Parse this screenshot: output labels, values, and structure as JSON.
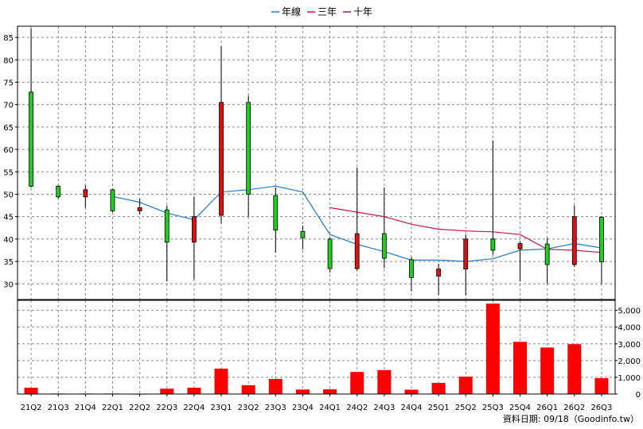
{
  "chart_data": {
    "type": "candlestick",
    "legend": [
      {
        "name": "年線",
        "color": "#1f78d1"
      },
      {
        "name": "三年",
        "color": "#d01050"
      },
      {
        "name": "十年",
        "color": "#a01060"
      }
    ],
    "legend_position": "top-center",
    "grid": true,
    "categories": [
      "21Q2",
      "21Q3",
      "21Q4",
      "22Q1",
      "22Q2",
      "22Q3",
      "22Q4",
      "23Q1",
      "23Q2",
      "23Q3",
      "23Q4",
      "24Q1",
      "24Q2",
      "24Q3",
      "24Q4",
      "25Q1",
      "25Q2",
      "25Q3",
      "25Q4",
      "26Q1",
      "26Q2",
      "26Q3"
    ],
    "price": {
      "ylim": [
        26.5,
        87.5
      ],
      "yticks": [
        30,
        35,
        40,
        45,
        50,
        55,
        60,
        65,
        70,
        75,
        80,
        85
      ],
      "candles": [
        {
          "open": 51.8,
          "close": 72.8,
          "high": 87.0,
          "low": 51.5
        },
        {
          "open": 49.4,
          "close": 51.8,
          "high": 52.0,
          "low": 49.0
        },
        {
          "open": 51.0,
          "close": 49.4,
          "high": 52.0,
          "low": 47.0
        },
        {
          "open": 46.3,
          "close": 51.0,
          "high": 51.2,
          "low": 46.0
        },
        {
          "open": 47.0,
          "close": 46.3,
          "high": 49.0,
          "low": 45.5
        },
        {
          "open": 39.3,
          "close": 46.5,
          "high": 47.5,
          "low": 30.5
        },
        {
          "open": 45.0,
          "close": 39.3,
          "high": 49.5,
          "low": 31.0
        },
        {
          "open": 70.5,
          "close": 45.3,
          "high": 83.0,
          "low": 43.5
        },
        {
          "open": 50.0,
          "close": 70.5,
          "high": 72.0,
          "low": 45.0
        },
        {
          "open": 42.0,
          "close": 49.7,
          "high": 51.5,
          "low": 37.0
        },
        {
          "open": 40.3,
          "close": 41.7,
          "high": 43.0,
          "low": 37.7
        },
        {
          "open": 33.4,
          "close": 40.0,
          "high": 40.3,
          "low": 32.5
        },
        {
          "open": 41.2,
          "close": 33.4,
          "high": 56.0,
          "low": 33.0
        },
        {
          "open": 35.7,
          "close": 41.2,
          "high": 51.5,
          "low": 33.5
        },
        {
          "open": 31.4,
          "close": 35.4,
          "high": 36.0,
          "low": 28.3
        },
        {
          "open": 33.3,
          "close": 31.7,
          "high": 34.5,
          "low": 27.5
        },
        {
          "open": 40.0,
          "close": 33.3,
          "high": 41.0,
          "low": 27.5
        },
        {
          "open": 37.5,
          "close": 40.0,
          "high": 62.0,
          "low": 36.5
        },
        {
          "open": 39.0,
          "close": 37.8,
          "high": 39.5,
          "low": 30.5
        },
        {
          "open": 34.3,
          "close": 38.9,
          "high": 40.2,
          "low": 30.0
        },
        {
          "open": 45.0,
          "close": 34.3,
          "high": 47.5,
          "low": 33.8
        },
        {
          "open": 34.9,
          "close": 44.9,
          "high": 45.0,
          "low": 30.0
        }
      ],
      "series": [
        {
          "name": "年線",
          "color": "#1f78d1",
          "start": 3,
          "values": [
            49.5,
            48.2,
            45.8,
            44.3,
            50.5,
            51.0,
            51.8,
            50.5,
            41.0,
            38.8,
            37.2,
            35.3,
            35.3,
            35.0,
            35.6,
            37.5,
            37.8,
            39.0,
            38.0
          ]
        },
        {
          "name": "三年",
          "color": "#d01050",
          "start": 11,
          "values": [
            47.0,
            46.0,
            45.0,
            43.3,
            42.2,
            41.8,
            41.6,
            41.0,
            37.7,
            37.5,
            37.0
          ]
        }
      ]
    },
    "volume": {
      "ylim": [
        0,
        5600
      ],
      "yticks": [
        0,
        1000,
        2000,
        3000,
        4000,
        5000
      ],
      "ytick_labels": [
        "0",
        "1,000",
        "2,000",
        "3,000",
        "4,000",
        "5,000"
      ],
      "values": [
        380,
        30,
        30,
        30,
        10,
        320,
        380,
        1520,
        530,
        900,
        270,
        280,
        1320,
        1430,
        260,
        670,
        1040,
        5400,
        3120,
        2780,
        2980,
        950
      ]
    }
  },
  "source": "資料日期: 09/18（Goodinfo.tw）"
}
